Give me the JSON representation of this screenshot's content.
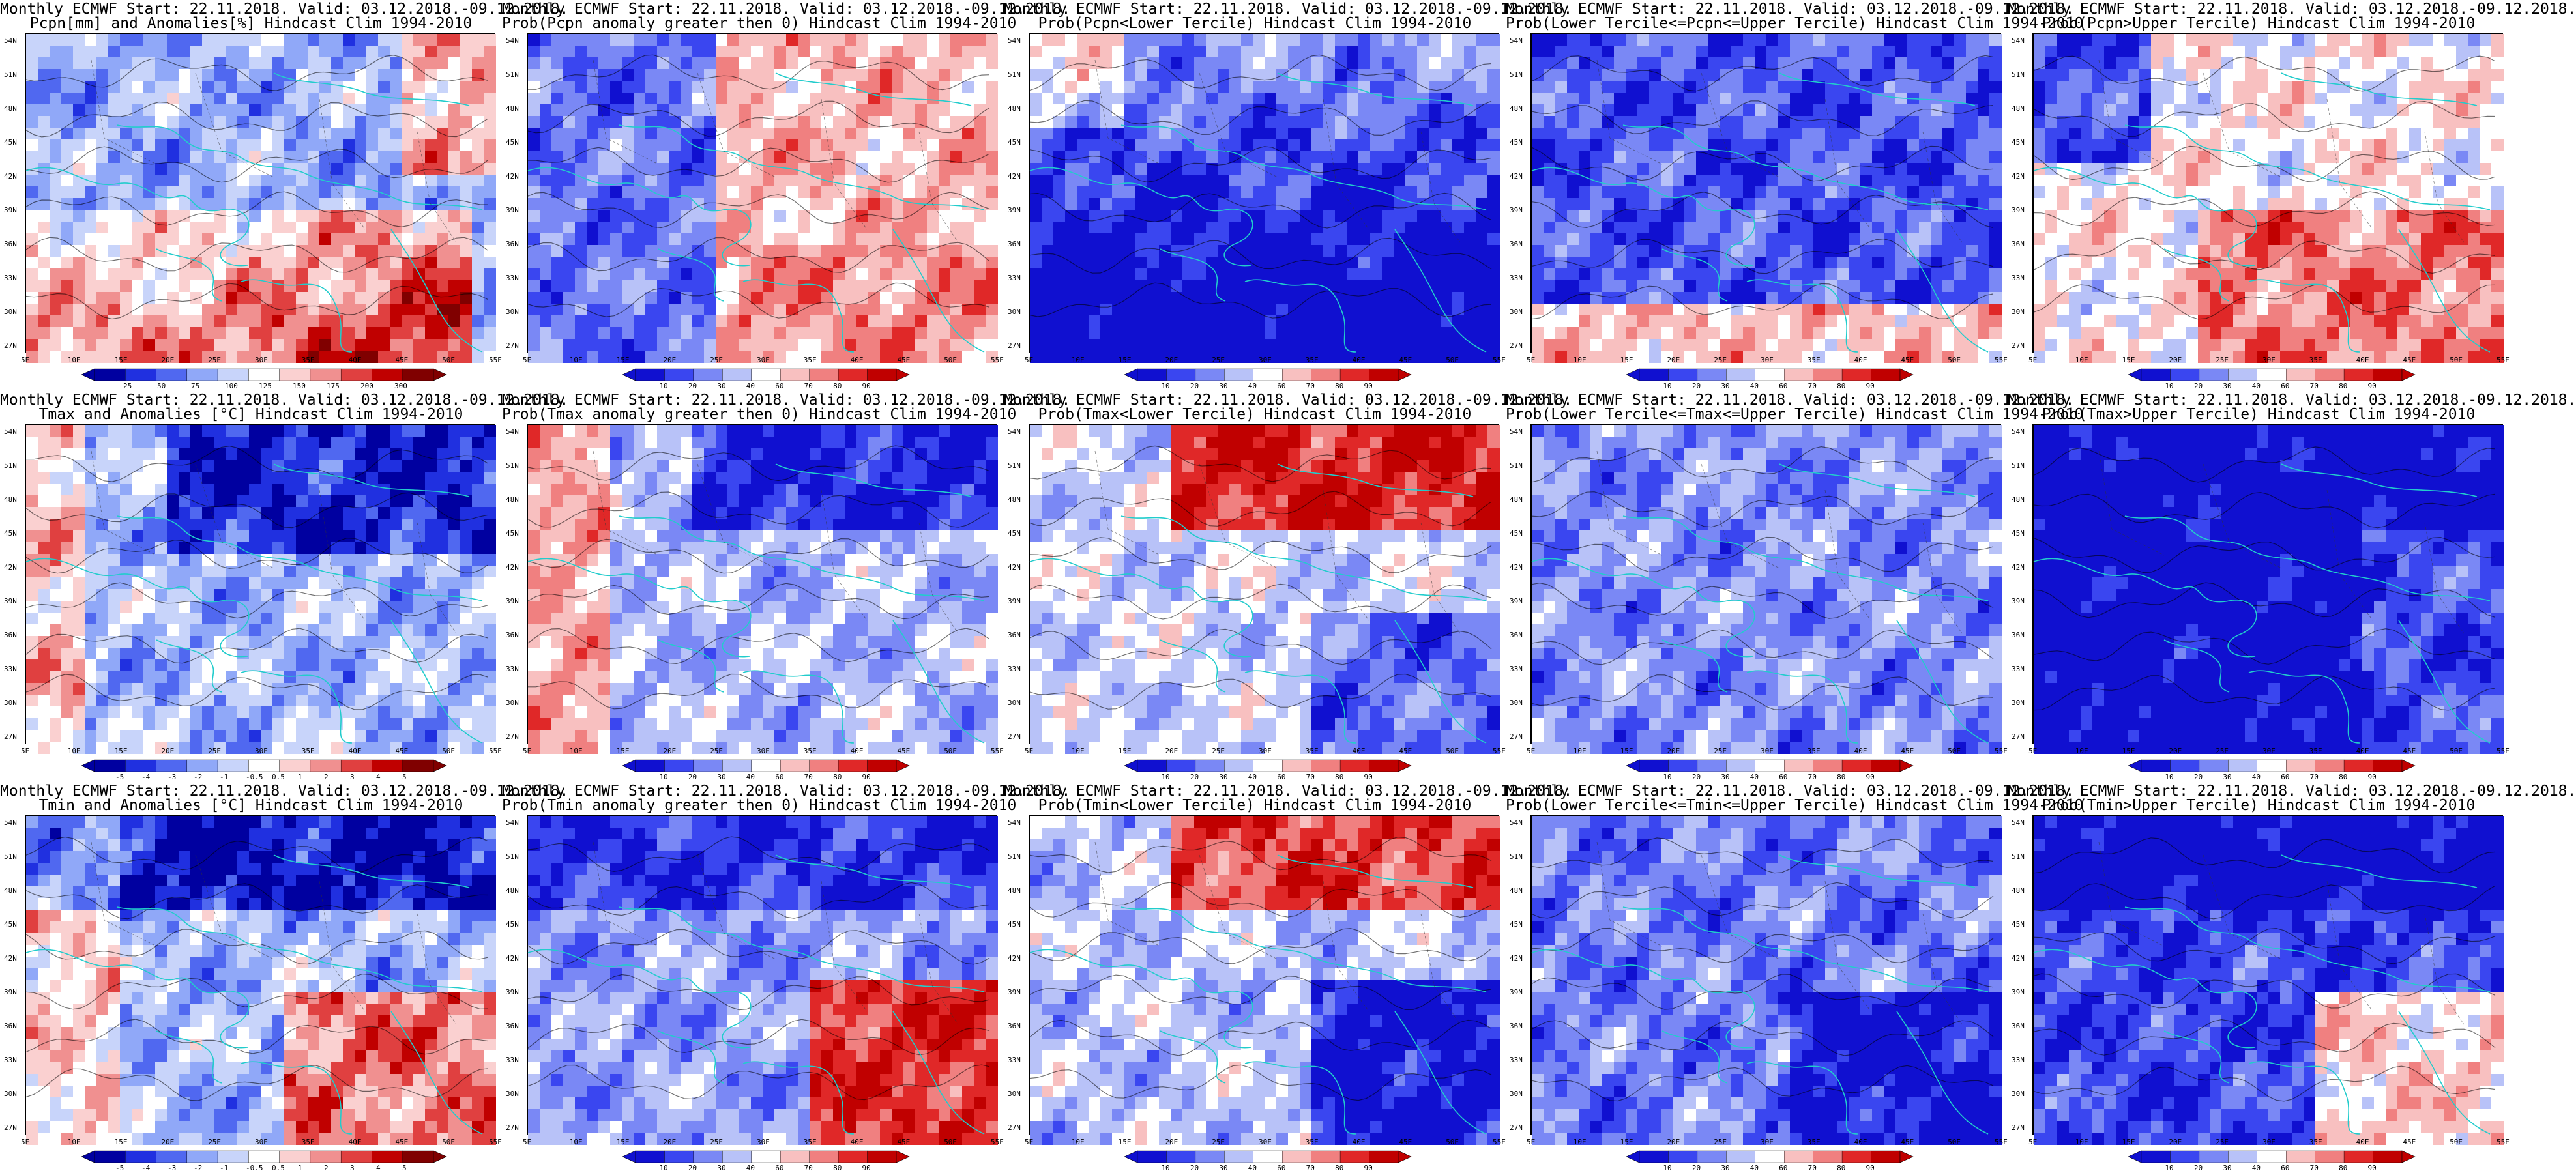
{
  "lat_labels": [
    "54N",
    "51N",
    "48N",
    "45N",
    "42N",
    "39N",
    "36N",
    "33N",
    "30N",
    "27N"
  ],
  "lon_labels": [
    "5E",
    "10E",
    "15E",
    "20E",
    "25E",
    "30E",
    "35E",
    "40E",
    "45E",
    "50E",
    "55E"
  ],
  "colors": {
    "coast": "#22cccc",
    "contour": "#000000",
    "scale_prob": [
      "#1010d0",
      "#3a46f0",
      "#7a88f5",
      "#b8c2f8",
      "#ffffff",
      "#f8c0c0",
      "#f08080",
      "#e02828",
      "#c00000"
    ],
    "scale_anom": [
      "#0000a0",
      "#2030e0",
      "#5068f0",
      "#90a8f8",
      "#c8d4fa",
      "#ffffff",
      "#fad0d0",
      "#f09090",
      "#e04040",
      "#c00000",
      "#800000"
    ]
  },
  "panels": [
    {
      "title1": "Monthly ECMWF Start: 22.11.2018. Valid: 03.12.2018.-09.12.2018.",
      "title2": "Pcpn[mm] and Anomalies[%] Hindcast Clim 1994-2010",
      "scale": "anom",
      "levels": [
        "25",
        "50",
        "75",
        "100",
        "125",
        "150",
        "175",
        "200",
        "300"
      ],
      "level": -0.15,
      "pattern": "pcpn-anom"
    },
    {
      "title1": "Monthly ECMWF Start: 22.11.2018. Valid: 03.12.2018.-09.12.2018.",
      "title2": "Prob(Pcpn anomaly greater then 0) Hindcast Clim 1994-2010",
      "scale": "prob",
      "levels": [
        "10",
        "20",
        "30",
        "40",
        "60",
        "70",
        "80",
        "90"
      ],
      "level": 0.15,
      "pattern": "pcpn-gt0"
    },
    {
      "title1": "Monthly ECMWF Start: 22.11.2018. Valid: 03.12.2018.-09.12.2018.",
      "title2": "Prob(Pcpn<Lower Tercile) Hindcast Clim 1994-2010",
      "scale": "prob",
      "levels": [
        "10",
        "20",
        "30",
        "40",
        "60",
        "70",
        "80",
        "90"
      ],
      "level": -0.2,
      "pattern": "pcpn-lower"
    },
    {
      "title1": "Monthly ECMWF Start: 22.11.2018. Valid: 03.12.2018.-09.12.2018.",
      "title2": "Prob(Lower Tercile<=Pcpn<=Upper Tercile) Hindcast Clim 1994-2010",
      "scale": "prob",
      "levels": [
        "10",
        "20",
        "30",
        "40",
        "60",
        "70",
        "80",
        "90"
      ],
      "level": -0.4,
      "pattern": "pcpn-mid"
    },
    {
      "title1": "Monthly ECMWF Start: 22.11.2018. Valid: 03.12.2018.-09.12.2018.",
      "title2": "Prob(Pcpn>Upper Tercile) Hindcast Clim 1994-2010",
      "scale": "prob",
      "levels": [
        "10",
        "20",
        "30",
        "40",
        "60",
        "70",
        "80",
        "90"
      ],
      "level": 0.05,
      "pattern": "pcpn-upper"
    },
    {
      "title1": "Monthly ECMWF Start: 22.11.2018. Valid: 03.12.2018.-09.12.2018.",
      "title2": "Tmax and Anomalies [°C] Hindcast Clim 1994-2010",
      "scale": "anom",
      "levels": [
        "-5",
        "-4",
        "-3",
        "-2",
        "-1",
        "-0.5",
        "0.5",
        "1",
        "2",
        "3",
        "4",
        "5"
      ],
      "level": 0.0,
      "pattern": "t-anom"
    },
    {
      "title1": "Monthly ECMWF Start: 22.11.2018. Valid: 03.12.2018.-09.12.2018.",
      "title2": "Prob(Tmax anomaly greater then 0) Hindcast Clim 1994-2010",
      "scale": "prob",
      "levels": [
        "10",
        "20",
        "30",
        "40",
        "60",
        "70",
        "80",
        "90"
      ],
      "level": -0.05,
      "pattern": "t-gt0"
    },
    {
      "title1": "Monthly ECMWF Start: 22.11.2018. Valid: 03.12.2018.-09.12.2018.",
      "title2": "Prob(Tmax<Lower Tercile) Hindcast Clim 1994-2010",
      "scale": "prob",
      "levels": [
        "10",
        "20",
        "30",
        "40",
        "60",
        "70",
        "80",
        "90"
      ],
      "level": 0.1,
      "pattern": "t-lower"
    },
    {
      "title1": "Monthly ECMWF Start: 22.11.2018. Valid: 03.12.2018.-09.12.2018.",
      "title2": "Prob(Lower Tercile<=Tmax<=Upper Tercile) Hindcast Clim 1994-2010",
      "scale": "prob",
      "levels": [
        "10",
        "20",
        "30",
        "40",
        "60",
        "70",
        "80",
        "90"
      ],
      "level": -0.2,
      "pattern": "t-mid"
    },
    {
      "title1": "Monthly ECMWF Start: 22.11.2018. Valid: 03.12.2018.-09.12.2018.",
      "title2": "Prob(Tmax>Upper Tercile) Hindcast Clim 1994-2010",
      "scale": "prob",
      "levels": [
        "10",
        "20",
        "30",
        "40",
        "60",
        "70",
        "80",
        "90"
      ],
      "level": -0.55,
      "pattern": "t-upper"
    },
    {
      "title1": "Monthly ECMWF Start: 22.11.2018. Valid: 03.12.2018.-09.12.2018.",
      "title2": "Tmin and Anomalies [°C] Hindcast Clim 1994-2010",
      "scale": "anom",
      "levels": [
        "-5",
        "-4",
        "-3",
        "-2",
        "-1",
        "-0.5",
        "0.5",
        "1",
        "2",
        "3",
        "4",
        "5"
      ],
      "level": 0.0,
      "pattern": "tmin-anom"
    },
    {
      "title1": "Monthly ECMWF Start: 22.11.2018. Valid: 03.12.2018.-09.12.2018.",
      "title2": "Prob(Tmin anomaly greater then 0) Hindcast Clim 1994-2010",
      "scale": "prob",
      "levels": [
        "10",
        "20",
        "30",
        "40",
        "60",
        "70",
        "80",
        "90"
      ],
      "level": 0.0,
      "pattern": "tmin-gt0"
    },
    {
      "title1": "Monthly ECMWF Start: 22.11.2018. Valid: 03.12.2018.-09.12.2018.",
      "title2": "Prob(Tmin<Lower Tercile) Hindcast Clim 1994-2010",
      "scale": "prob",
      "levels": [
        "10",
        "20",
        "30",
        "40",
        "60",
        "70",
        "80",
        "90"
      ],
      "level": 0.0,
      "pattern": "tmin-lower"
    },
    {
      "title1": "Monthly ECMWF Start: 22.11.2018. Valid: 03.12.2018.-09.12.2018.",
      "title2": "Prob(Lower Tercile<=Tmin<=Upper Tercile) Hindcast Clim 1994-2010",
      "scale": "prob",
      "levels": [
        "10",
        "20",
        "30",
        "40",
        "60",
        "70",
        "80",
        "90"
      ],
      "level": -0.3,
      "pattern": "tmin-mid"
    },
    {
      "title1": "Monthly ECMWF Start: 22.11.2018. Valid: 03.12.2018.-09.12.2018.",
      "title2": "Prob(Tmin>Upper Tercile) Hindcast Clim 1994-2010",
      "scale": "prob",
      "levels": [
        "10",
        "20",
        "30",
        "40",
        "60",
        "70",
        "80",
        "90"
      ],
      "level": -0.3,
      "pattern": "tmin-upper"
    }
  ]
}
